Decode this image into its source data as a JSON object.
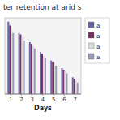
{
  "chart_data": {
    "type": "bar",
    "title": "ter retention at arid s",
    "xlabel": "Days",
    "x": [
      1,
      2,
      3,
      4,
      5,
      6,
      7
    ],
    "series": [
      {
        "name": "a",
        "color": "#6666aa",
        "values": [
          95,
          80,
          68,
          55,
          44,
          34,
          22
        ]
      },
      {
        "name": "a",
        "color": "#7b3060",
        "values": [
          90,
          78,
          66,
          53,
          42,
          32,
          20
        ]
      },
      {
        "name": "a",
        "color": "#dddddd",
        "values": [
          85,
          74,
          63,
          50,
          40,
          30,
          18
        ]
      },
      {
        "name": "a",
        "color": "#9999bb",
        "values": [
          80,
          70,
          60,
          47,
          37,
          27,
          15
        ]
      }
    ],
    "xlim": [
      0.45,
      7.55
    ],
    "xticks": [
      1,
      2,
      3,
      4,
      5,
      6,
      7
    ],
    "ylim": [
      0,
      100
    ],
    "yticks": [],
    "grid": false,
    "tick_labels": "x",
    "legend": "right"
  }
}
